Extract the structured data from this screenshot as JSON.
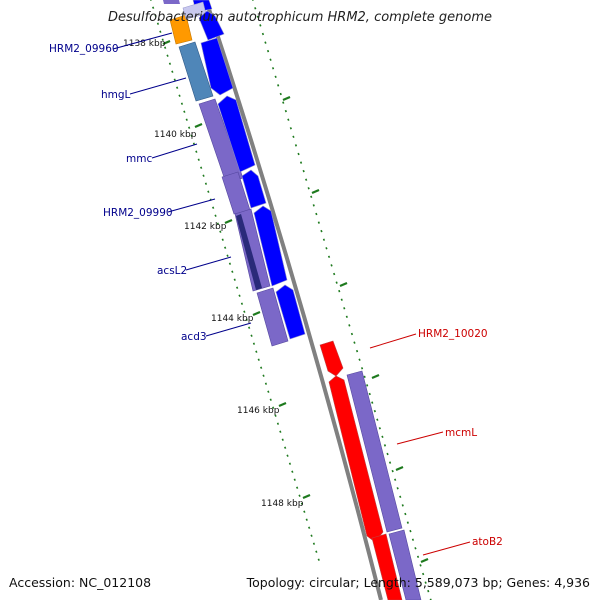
{
  "title": "Desulfobacterium autotrophicum HRM2, complete genome",
  "accession": "Accession: NC_012108",
  "summary": "Topology: circular; Length: 5,589,073 bp; Genes: 4,936",
  "tick_labels": [
    "1138 kbp",
    "1140 kbp",
    "1142 kbp",
    "1144 kbp",
    "1146 kbp",
    "1148 kbp"
  ],
  "gene_labels_left": [
    "HRM2_09960",
    "hmgL",
    "mmc",
    "HRM2_09990",
    "acsL2",
    "acd3"
  ],
  "gene_labels_right": [
    "HRM2_10020",
    "mcmL",
    "atoB2"
  ],
  "colors": {
    "left_label": "#00008b",
    "right_label": "#cc0000",
    "cds_forward": "#0000ff",
    "cds_reverse": "#ff0000",
    "cog_purple": "#7b68c8",
    "cog_steel": "#4f86b8",
    "cog_orange": "#ff9900",
    "cog_dark": "#2a2a7a",
    "backbone": "#808080",
    "tick": "#1e7a1e"
  }
}
